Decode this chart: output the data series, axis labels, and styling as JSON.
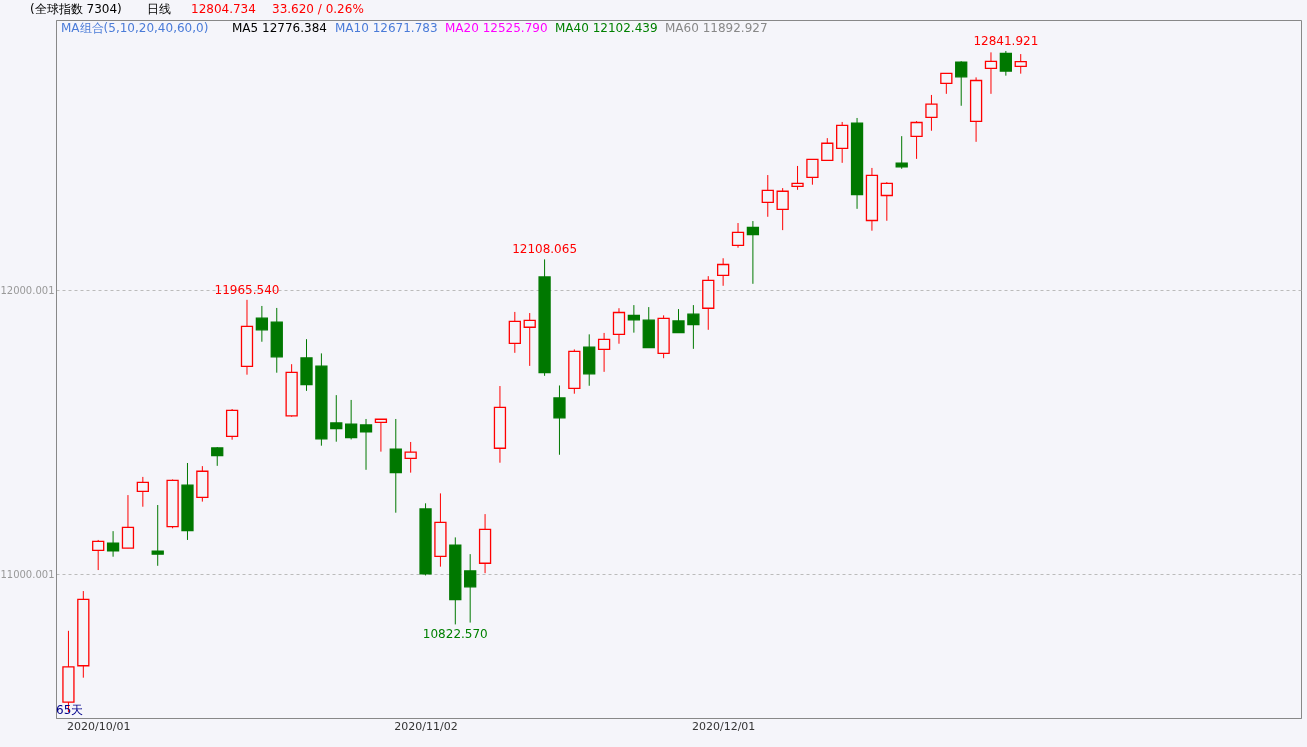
{
  "chart_data": {
    "type": "candlestick",
    "title": "(全球指数 7304)",
    "categories": [
      null,
      null,
      "2020/10/01",
      null,
      null,
      null,
      null,
      null,
      null,
      null,
      null,
      null,
      null,
      null,
      null,
      null,
      null,
      null,
      null,
      null,
      null,
      null,
      null,
      null,
      "2020/11/02",
      null,
      null,
      null,
      null,
      null,
      null,
      null,
      null,
      null,
      null,
      null,
      null,
      null,
      null,
      null,
      null,
      null,
      null,
      null,
      "2020/12/01",
      null,
      null,
      null,
      null,
      null,
      null,
      null,
      null,
      null,
      null,
      null,
      null,
      null,
      null,
      null,
      null,
      null,
      null,
      null,
      null
    ],
    "ohlc": [
      [
        10549,
        10800,
        10514,
        10673
      ],
      [
        10677,
        10940,
        10635,
        10911
      ],
      [
        11083,
        11120,
        11014,
        11115
      ],
      [
        11109,
        11151,
        11061,
        11082
      ],
      [
        11091,
        11278,
        11091,
        11164
      ],
      [
        11291,
        11342,
        11237,
        11323
      ],
      [
        11081,
        11243,
        11029,
        11070
      ],
      [
        11167,
        11333,
        11161,
        11330
      ],
      [
        11313,
        11391,
        11120,
        11153
      ],
      [
        11270,
        11380,
        11255,
        11362
      ],
      [
        11444,
        11447,
        11381,
        11417
      ],
      [
        11485,
        11581,
        11473,
        11576
      ],
      [
        11731,
        11965.54,
        11702,
        11872
      ],
      [
        11901,
        11944,
        11818,
        11860
      ],
      [
        11887,
        11937,
        11709,
        11765
      ],
      [
        11557,
        11739,
        11554,
        11710
      ],
      [
        11761,
        11827,
        11645,
        11667
      ],
      [
        11732,
        11777,
        11452,
        11476
      ],
      [
        11532,
        11630,
        11466,
        11512
      ],
      [
        11528,
        11613,
        11474,
        11480
      ],
      [
        11525,
        11546,
        11367,
        11501
      ],
      [
        11534,
        11545,
        11431,
        11545
      ],
      [
        11440,
        11546,
        11216,
        11357
      ],
      [
        11407,
        11465,
        11357,
        11429
      ],
      [
        11229,
        11249,
        10995,
        11001
      ],
      [
        11062,
        11284,
        11026,
        11182
      ],
      [
        11102,
        11129,
        10822.57,
        10910
      ],
      [
        11011,
        11070,
        10829,
        10955
      ],
      [
        11038,
        11211,
        11003,
        11157
      ],
      [
        11443,
        11662,
        11392,
        11587
      ],
      [
        11812,
        11923,
        11779,
        11890
      ],
      [
        11869,
        11919,
        11733,
        11893
      ],
      [
        12046,
        12108.065,
        11698,
        11709
      ],
      [
        11620,
        11664,
        11420,
        11550
      ],
      [
        11654,
        11791,
        11635,
        11784
      ],
      [
        11799,
        11844,
        11663,
        11705
      ],
      [
        11791,
        11849,
        11712,
        11826
      ],
      [
        11844,
        11936,
        11811,
        11921
      ],
      [
        11911,
        11947,
        11850,
        11895
      ],
      [
        11894,
        11940,
        11797,
        11797
      ],
      [
        11777,
        11911,
        11760,
        11900
      ],
      [
        11891,
        11933,
        11850,
        11850
      ],
      [
        11915,
        11947,
        11793,
        11878
      ],
      [
        11936,
        12049,
        11860,
        12034
      ],
      [
        12052,
        12112,
        12015,
        12090
      ],
      [
        12157,
        12236,
        12149,
        12203
      ],
      [
        12221,
        12243,
        12022,
        12195
      ],
      [
        12309,
        12405,
        12258,
        12351
      ],
      [
        12284,
        12359,
        12211,
        12348
      ],
      [
        12365,
        12437,
        12353,
        12376
      ],
      [
        12397,
        12460,
        12371,
        12460
      ],
      [
        12457,
        12535,
        12457,
        12517
      ],
      [
        12499,
        12592,
        12448,
        12580
      ],
      [
        12588,
        12606,
        12286,
        12336
      ],
      [
        12245,
        12430,
        12209,
        12404
      ],
      [
        12333,
        12380,
        12244,
        12376
      ],
      [
        12447,
        12542,
        12427,
        12434
      ],
      [
        12541,
        12595,
        12462,
        12590
      ],
      [
        12608,
        12687,
        12561,
        12655
      ],
      [
        12728,
        12763,
        12691,
        12763
      ],
      [
        12803,
        12806,
        12649,
        12751
      ],
      [
        12594,
        12749,
        12522,
        12738
      ],
      [
        12781,
        12837,
        12691,
        12805
      ],
      [
        12833,
        12841.921,
        12755,
        12771
      ],
      [
        12788,
        12831,
        12762,
        12804.734
      ]
    ],
    "colors": [
      "#ff0000",
      "#ff0000",
      "#ff0000",
      "#007800",
      "#ff0000",
      "#ff0000",
      "#007800",
      "#ff0000",
      "#007800",
      "#ff0000",
      "#007800",
      "#ff0000",
      "#ff0000",
      "#007800",
      "#007800",
      "#ff0000",
      "#007800",
      "#007800",
      "#007800",
      "#007800",
      "#007800",
      "#ff0000",
      "#007800",
      "#ff0000",
      "#007800",
      "#ff0000",
      "#007800",
      "#007800",
      "#ff0000",
      "#ff0000",
      "#ff0000",
      "#ff0000",
      "#007800",
      "#007800",
      "#ff0000",
      "#007800",
      "#ff0000",
      "#ff0000",
      "#007800",
      "#007800",
      "#ff0000",
      "#007800",
      "#007800",
      "#ff0000",
      "#ff0000",
      "#ff0000",
      "#007800",
      "#ff0000",
      "#ff0000",
      "#ff0000",
      "#ff0000",
      "#ff0000",
      "#ff0000",
      "#007800",
      "#ff0000",
      "#ff0000",
      "#007800",
      "#ff0000",
      "#ff0000",
      "#ff0000",
      "#007800",
      "#ff0000",
      "#ff0000",
      "#007800",
      "#ff0000"
    ],
    "ylim": [
      10493,
      12951
    ],
    "yticks": [
      11000.001,
      12000.001
    ],
    "grid": "y",
    "annotations": [
      "日线",
      "12804.734",
      "33.620 / 0.26%",
      "MA组合(5,10,20,40,60,0)",
      "MA5 12776.384",
      "MA10 12671.783",
      "MA20 12525.790",
      "MA40 12102.439",
      "MA60 11892.927",
      "65天",
      {
        "text": "11965.540",
        "y": 11965.54
      },
      {
        "text": "12108.065",
        "y": 12108.065
      },
      {
        "text": "10822.570",
        "y": 10822.57
      },
      {
        "text": "12841.921",
        "y": 12841.921
      }
    ]
  }
}
